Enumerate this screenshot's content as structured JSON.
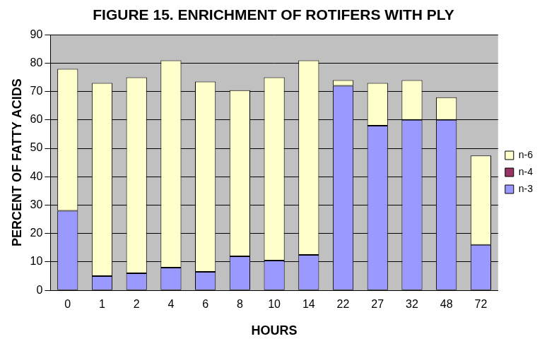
{
  "chart_data": {
    "type": "bar",
    "title": "FIGURE 15. ENRICHMENT OF ROTIFERS WITH PLY",
    "x_label": "HOURS",
    "y_label": "PERCENT OF FATTY ACIDS",
    "categories": [
      "0",
      "1",
      "2",
      "4",
      "6",
      "8",
      "10",
      "14",
      "22",
      "27",
      "32",
      "48",
      "72"
    ],
    "series": [
      {
        "name": "n-3",
        "color": "#9999FF",
        "values": [
          28,
          5,
          6,
          8,
          6.5,
          12,
          10.5,
          12.5,
          72,
          58,
          60,
          60,
          16
        ]
      },
      {
        "name": "n-4",
        "color": "#993366",
        "values": [
          0,
          0,
          0,
          0,
          0,
          0,
          0,
          0,
          0,
          0,
          0,
          0,
          0
        ]
      },
      {
        "name": "n-6",
        "color": "#FFFFCC",
        "values": [
          50,
          68,
          69,
          73,
          67,
          58.5,
          64.5,
          68.5,
          2,
          15,
          14,
          8,
          31.5
        ]
      }
    ],
    "stacked": true,
    "ylim": [
      0,
      90
    ],
    "yticks": [
      0,
      10,
      20,
      30,
      40,
      50,
      60,
      70,
      80,
      90
    ],
    "grid": true,
    "legend": "right"
  }
}
